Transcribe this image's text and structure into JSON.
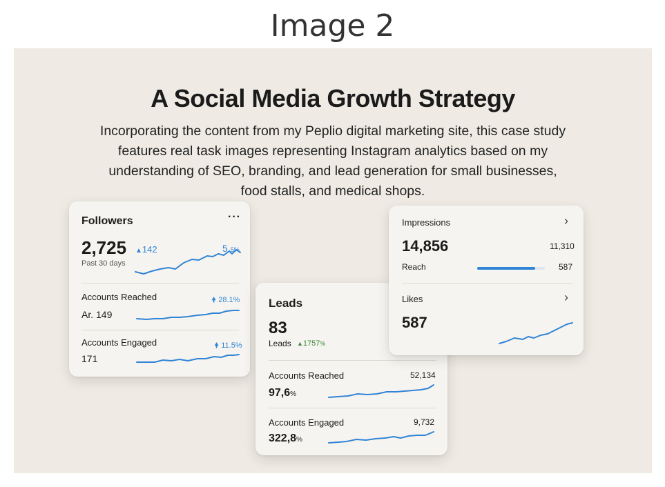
{
  "header": {
    "image_label": "Image 2"
  },
  "hero": {
    "title": "A Social Media Growth Strategy",
    "intro_lines": [
      "Incorporating the content from my Peplio digital marketing site, this case study",
      "features real task images representing Instagram analytics based on my",
      "understanding of SEO, branding, and lead generation for small businesses,",
      "food stalls, and medical shops."
    ]
  },
  "followers_card": {
    "title": "Followers",
    "menu_icon": "more-dots-icon",
    "value": "2,725",
    "change": "142",
    "change_icon": "caret-up-icon",
    "growth": "5",
    "growth_pct": "5%",
    "period": "Past 30 days",
    "rows": [
      {
        "label": "Accounts Reached",
        "value": "Ar. 149",
        "change": "28.1%",
        "change_icon": "arrow-up-icon"
      },
      {
        "label": "Accounts Engaged",
        "value": "171",
        "change": "11.5%",
        "change_icon": "arrow-up-icon"
      }
    ]
  },
  "leads_card": {
    "title": "Leads",
    "value": "83",
    "sublabel": "Leads",
    "change": "1757",
    "change_unit": "%",
    "change_icon": "caret-up-icon",
    "rows": [
      {
        "label": "Accounts Reached",
        "right_value": "52,134",
        "value": "97,6",
        "unit": "%"
      },
      {
        "label": "Accounts Engaged",
        "right_value": "9,732",
        "value": "322,8",
        "unit": "%"
      }
    ]
  },
  "impressions_card": {
    "title": "Impressions",
    "value": "14,856",
    "right_value": "11,310",
    "reach_label": "Reach",
    "reach_value": "587",
    "reach_bar_fraction": 0.86,
    "likes_title": "Likes",
    "likes_value": "587",
    "chevron_icon": "chevron-right-icon"
  },
  "colors": {
    "accent_blue": "#2f84d6",
    "accent_green": "#3d8a3a",
    "panel_bg": "#efebe4",
    "card_bg": "#f6f4f0"
  }
}
